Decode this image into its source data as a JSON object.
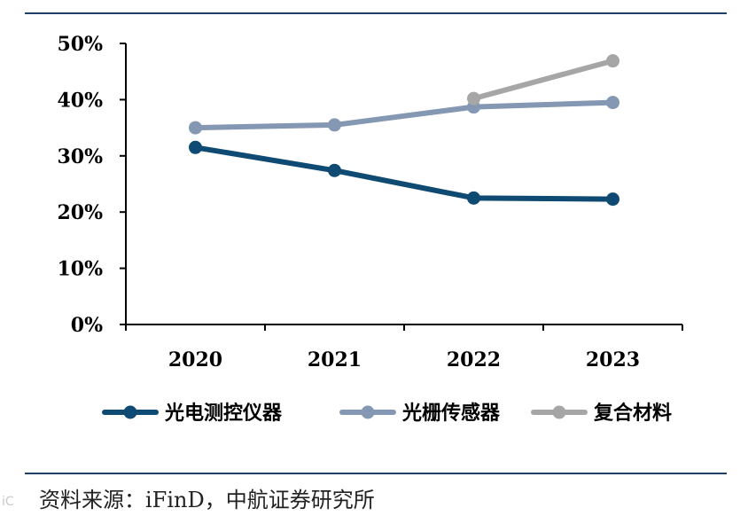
{
  "chart_data": {
    "type": "line",
    "categories": [
      "2020",
      "2021",
      "2022",
      "2023"
    ],
    "series": [
      {
        "name": "光电测控仪器",
        "color": "#0e4a72",
        "values": [
          31.5,
          27.4,
          22.5,
          22.3
        ]
      },
      {
        "name": "光栅传感器",
        "color": "#8497b3",
        "values": [
          35.0,
          35.5,
          38.7,
          39.5
        ]
      },
      {
        "name": "复合材料",
        "color": "#a6a6a6",
        "values": [
          null,
          null,
          40.2,
          46.9
        ]
      }
    ],
    "y_ticks": [
      "0%",
      "10%",
      "20%",
      "30%",
      "40%",
      "50%"
    ],
    "ylim": [
      0,
      50
    ],
    "xlabel": "",
    "ylabel": "",
    "legend_position": "bottom"
  },
  "source": "资料来源：iFinD，中航证券研究所",
  "watermark": "iC"
}
